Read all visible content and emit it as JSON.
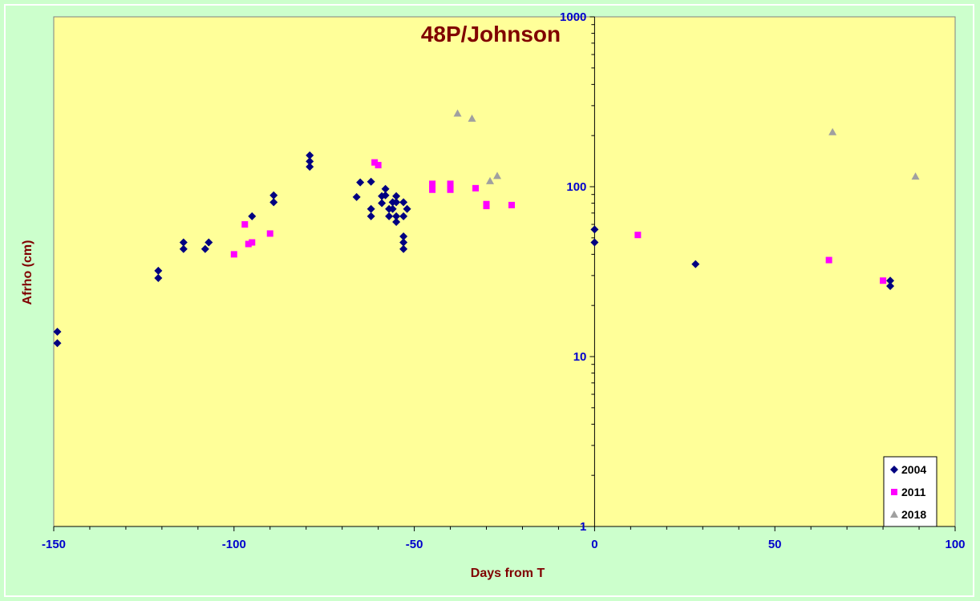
{
  "chart_data": {
    "type": "scatter",
    "title": "48P/Johnson",
    "xlabel": "Days from T",
    "ylabel": "Afrho (cm)",
    "xlim": [
      -150,
      100
    ],
    "ylim": [
      1,
      1000
    ],
    "yscale": "log",
    "x_ticks": [
      -150,
      -100,
      -50,
      0,
      50,
      100
    ],
    "y_ticks": [
      1,
      10,
      100,
      1000
    ],
    "legend_position": "bottom-right",
    "colors": {
      "outer_background": "#ccffcc",
      "plot_background": "#ffff99",
      "title": "#800000",
      "axis_title": "#800000",
      "tick_labels": "#0000cc",
      "axis": "#000000"
    },
    "series": [
      {
        "name": "2004",
        "marker": "diamond",
        "color": "#000080",
        "points": [
          [
            -149,
            14
          ],
          [
            -149,
            12
          ],
          [
            -121,
            32
          ],
          [
            -121,
            29
          ],
          [
            -114,
            47
          ],
          [
            -114,
            43
          ],
          [
            -108,
            43
          ],
          [
            -107,
            47
          ],
          [
            -95,
            67
          ],
          [
            -89,
            89
          ],
          [
            -89,
            81
          ],
          [
            -79,
            153
          ],
          [
            -79,
            141
          ],
          [
            -79,
            131
          ],
          [
            -66,
            87
          ],
          [
            -65,
            106
          ],
          [
            -62,
            107
          ],
          [
            -62,
            74
          ],
          [
            -62,
            67
          ],
          [
            -59,
            88
          ],
          [
            -59,
            80
          ],
          [
            -58,
            97
          ],
          [
            -58,
            89
          ],
          [
            -57,
            74
          ],
          [
            -57,
            67
          ],
          [
            -56,
            81
          ],
          [
            -56,
            74
          ],
          [
            -55,
            88
          ],
          [
            -55,
            81
          ],
          [
            -55,
            67
          ],
          [
            -55,
            62
          ],
          [
            -53,
            81
          ],
          [
            -53,
            67
          ],
          [
            -53,
            51
          ],
          [
            -53,
            47
          ],
          [
            -53,
            43
          ],
          [
            -52,
            74
          ],
          [
            0,
            56
          ],
          [
            0,
            47
          ],
          [
            28,
            35
          ],
          [
            82,
            28
          ],
          [
            82,
            26
          ]
        ]
      },
      {
        "name": "2011",
        "marker": "square",
        "color": "#ff00ff",
        "points": [
          [
            -100,
            40
          ],
          [
            -97,
            60
          ],
          [
            -96,
            46
          ],
          [
            -95,
            47
          ],
          [
            -90,
            53
          ],
          [
            -61,
            139
          ],
          [
            -60,
            134
          ],
          [
            -45,
            104
          ],
          [
            -45,
            96
          ],
          [
            -40,
            104
          ],
          [
            -40,
            96
          ],
          [
            -33,
            98
          ],
          [
            -30,
            79
          ],
          [
            -30,
            77
          ],
          [
            -23,
            78
          ],
          [
            12,
            52
          ],
          [
            65,
            37
          ],
          [
            80,
            28
          ]
        ]
      },
      {
        "name": "2018",
        "marker": "triangle",
        "color": "#a0a0a0",
        "points": [
          [
            -38,
            270
          ],
          [
            -34,
            252
          ],
          [
            -29,
            108
          ],
          [
            -27,
            116
          ],
          [
            66,
            210
          ],
          [
            89,
            115
          ]
        ]
      }
    ]
  }
}
